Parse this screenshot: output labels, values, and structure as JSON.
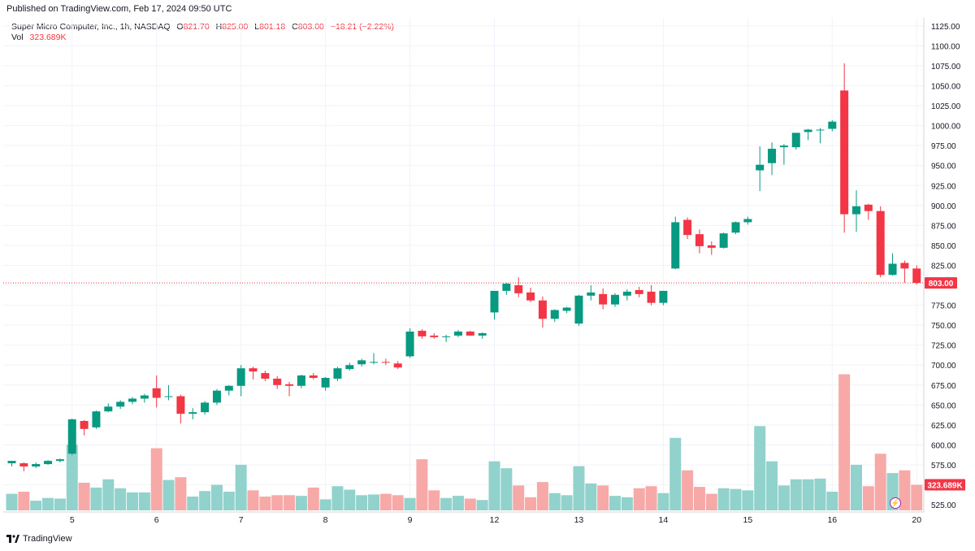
{
  "header": {
    "published": "Published on TradingView.com, Feb 17, 2024 09:50 UTC"
  },
  "legend": {
    "symbol": "Super Micro Computer, Inc., 1h, NASDAQ",
    "o_label": "O",
    "o_value": "821.70",
    "h_label": "H",
    "h_value": "825.00",
    "l_label": "L",
    "l_value": "801.18",
    "c_label": "C",
    "c_value": "803.00",
    "change": "−18.21 (−2.22%)",
    "vol_label": "Vol",
    "vol_value": "323.689K"
  },
  "footer": {
    "brand": "TradingView"
  },
  "colors": {
    "up": "#089981",
    "down": "#f23645",
    "up_vol": "#92d2cc",
    "down_vol": "#f7a9a7",
    "grid": "#f0f3fa",
    "axis_text": "#131722"
  },
  "chart_data": {
    "type": "candlestick",
    "y_axis": {
      "ylim": [
        518,
        1135
      ],
      "ticks": [
        "525.00",
        "550.00",
        "575.00",
        "600.00",
        "625.00",
        "650.00",
        "675.00",
        "700.00",
        "725.00",
        "750.00",
        "775.00",
        "800.00",
        "825.00",
        "850.00",
        "875.00",
        "900.00",
        "925.00",
        "950.00",
        "975.00",
        "1000.00",
        "1025.00",
        "1050.00",
        "1075.00",
        "1100.00",
        "1125.00"
      ],
      "tick_values": [
        525,
        550,
        575,
        600,
        625,
        650,
        675,
        700,
        725,
        750,
        775,
        800,
        825,
        850,
        875,
        900,
        925,
        950,
        975,
        1000,
        1025,
        1050,
        1075,
        1100,
        1125
      ]
    },
    "x_axis": {
      "ticks": [
        "5",
        "6",
        "7",
        "8",
        "9",
        "12",
        "13",
        "14",
        "15",
        "16",
        "20"
      ],
      "tick_bar_index": [
        5,
        12,
        19,
        26,
        33,
        40,
        47,
        54,
        61,
        68,
        75
      ]
    },
    "last_price": "803.00",
    "last_price_value": 803,
    "last_volume": "323.689K",
    "candles": [
      {
        "o": 577,
        "h": 580,
        "l": 573,
        "c": 580
      },
      {
        "o": 577,
        "h": 578,
        "l": 567,
        "c": 573
      },
      {
        "o": 573,
        "h": 578,
        "l": 571,
        "c": 576
      },
      {
        "o": 576,
        "h": 581,
        "l": 575,
        "c": 580
      },
      {
        "o": 580,
        "h": 583,
        "l": 578,
        "c": 582
      },
      {
        "o": 589,
        "h": 633,
        "l": 587,
        "c": 632
      },
      {
        "o": 630,
        "h": 631,
        "l": 612,
        "c": 620
      },
      {
        "o": 622,
        "h": 643,
        "l": 620,
        "c": 642
      },
      {
        "o": 642,
        "h": 652,
        "l": 641,
        "c": 648
      },
      {
        "o": 648,
        "h": 656,
        "l": 645,
        "c": 654
      },
      {
        "o": 654,
        "h": 660,
        "l": 651,
        "c": 658
      },
      {
        "o": 658,
        "h": 664,
        "l": 653,
        "c": 662
      },
      {
        "o": 671,
        "h": 687,
        "l": 647,
        "c": 659
      },
      {
        "o": 660,
        "h": 675,
        "l": 656,
        "c": 661
      },
      {
        "o": 661,
        "h": 663,
        "l": 627,
        "c": 639
      },
      {
        "o": 639,
        "h": 646,
        "l": 632,
        "c": 641
      },
      {
        "o": 641,
        "h": 655,
        "l": 638,
        "c": 653
      },
      {
        "o": 653,
        "h": 670,
        "l": 650,
        "c": 668
      },
      {
        "o": 668,
        "h": 675,
        "l": 662,
        "c": 674
      },
      {
        "o": 674,
        "h": 700,
        "l": 661,
        "c": 696
      },
      {
        "o": 696,
        "h": 698,
        "l": 682,
        "c": 692
      },
      {
        "o": 690,
        "h": 693,
        "l": 680,
        "c": 683
      },
      {
        "o": 683,
        "h": 686,
        "l": 670,
        "c": 675
      },
      {
        "o": 676,
        "h": 679,
        "l": 661,
        "c": 674
      },
      {
        "o": 674,
        "h": 688,
        "l": 671,
        "c": 687
      },
      {
        "o": 687,
        "h": 690,
        "l": 682,
        "c": 684
      },
      {
        "o": 672,
        "h": 685,
        "l": 668,
        "c": 684
      },
      {
        "o": 683,
        "h": 698,
        "l": 680,
        "c": 696
      },
      {
        "o": 695,
        "h": 703,
        "l": 693,
        "c": 700
      },
      {
        "o": 701,
        "h": 708,
        "l": 698,
        "c": 706
      },
      {
        "o": 704,
        "h": 715,
        "l": 701,
        "c": 704
      },
      {
        "o": 704,
        "h": 708,
        "l": 700,
        "c": 703
      },
      {
        "o": 702,
        "h": 705,
        "l": 695,
        "c": 697
      },
      {
        "o": 711,
        "h": 746,
        "l": 709,
        "c": 742
      },
      {
        "o": 743,
        "h": 745,
        "l": 733,
        "c": 736
      },
      {
        "o": 737,
        "h": 740,
        "l": 733,
        "c": 735
      },
      {
        "o": 735,
        "h": 738,
        "l": 729,
        "c": 736
      },
      {
        "o": 737,
        "h": 744,
        "l": 735,
        "c": 742
      },
      {
        "o": 742,
        "h": 743,
        "l": 737,
        "c": 737
      },
      {
        "o": 737,
        "h": 741,
        "l": 733,
        "c": 740
      },
      {
        "o": 766,
        "h": 793,
        "l": 757,
        "c": 793
      },
      {
        "o": 793,
        "h": 803,
        "l": 788,
        "c": 802
      },
      {
        "o": 800,
        "h": 810,
        "l": 785,
        "c": 790
      },
      {
        "o": 791,
        "h": 797,
        "l": 779,
        "c": 781
      },
      {
        "o": 781,
        "h": 786,
        "l": 747,
        "c": 758
      },
      {
        "o": 758,
        "h": 770,
        "l": 754,
        "c": 769
      },
      {
        "o": 768,
        "h": 773,
        "l": 765,
        "c": 772
      },
      {
        "o": 752,
        "h": 788,
        "l": 749,
        "c": 787
      },
      {
        "o": 787,
        "h": 800,
        "l": 781,
        "c": 791
      },
      {
        "o": 789,
        "h": 796,
        "l": 770,
        "c": 776
      },
      {
        "o": 776,
        "h": 790,
        "l": 773,
        "c": 788
      },
      {
        "o": 787,
        "h": 795,
        "l": 781,
        "c": 792
      },
      {
        "o": 794,
        "h": 798,
        "l": 785,
        "c": 789
      },
      {
        "o": 792,
        "h": 800,
        "l": 775,
        "c": 778
      },
      {
        "o": 778,
        "h": 793,
        "l": 775,
        "c": 793
      },
      {
        "o": 821,
        "h": 886,
        "l": 820,
        "c": 879
      },
      {
        "o": 882,
        "h": 885,
        "l": 858,
        "c": 863
      },
      {
        "o": 864,
        "h": 870,
        "l": 840,
        "c": 849
      },
      {
        "o": 850,
        "h": 855,
        "l": 838,
        "c": 847
      },
      {
        "o": 847,
        "h": 866,
        "l": 846,
        "c": 865
      },
      {
        "o": 866,
        "h": 880,
        "l": 864,
        "c": 879
      },
      {
        "o": 879,
        "h": 886,
        "l": 876,
        "c": 883
      },
      {
        "o": 944,
        "h": 974,
        "l": 918,
        "c": 951
      },
      {
        "o": 953,
        "h": 979,
        "l": 938,
        "c": 971
      },
      {
        "o": 973,
        "h": 977,
        "l": 951,
        "c": 975
      },
      {
        "o": 973,
        "h": 990,
        "l": 970,
        "c": 991
      },
      {
        "o": 992,
        "h": 996,
        "l": 982,
        "c": 995
      },
      {
        "o": 995,
        "h": 997,
        "l": 978,
        "c": 995
      },
      {
        "o": 996,
        "h": 1007,
        "l": 993,
        "c": 1005
      },
      {
        "o": 1044,
        "h": 1078,
        "l": 866,
        "c": 889
      },
      {
        "o": 889,
        "h": 919,
        "l": 867,
        "c": 899
      },
      {
        "o": 901,
        "h": 902,
        "l": 882,
        "c": 893
      },
      {
        "o": 893,
        "h": 899,
        "l": 810,
        "c": 813
      },
      {
        "o": 813,
        "h": 840,
        "l": 812,
        "c": 827
      },
      {
        "o": 828,
        "h": 831,
        "l": 803,
        "c": 821
      },
      {
        "o": 821,
        "h": 825,
        "l": 801,
        "c": 803
      }
    ],
    "volumes": [
      24,
      27,
      14,
      18,
      17,
      95,
      40,
      33,
      45,
      32,
      26,
      26,
      90,
      44,
      48,
      20,
      28,
      37,
      27,
      66,
      29,
      20,
      22,
      22,
      21,
      33,
      16,
      35,
      30,
      22,
      23,
      24,
      22,
      18,
      74,
      29,
      18,
      21,
      17,
      15,
      71,
      61,
      36,
      19,
      41,
      25,
      22,
      64,
      39,
      36,
      21,
      19,
      32,
      35,
      25,
      105,
      58,
      34,
      24,
      32,
      31,
      29,
      122,
      71,
      36,
      45,
      45,
      46,
      27,
      197,
      66,
      35,
      82,
      54,
      58,
      37
    ],
    "volume_axis_max": 200
  }
}
